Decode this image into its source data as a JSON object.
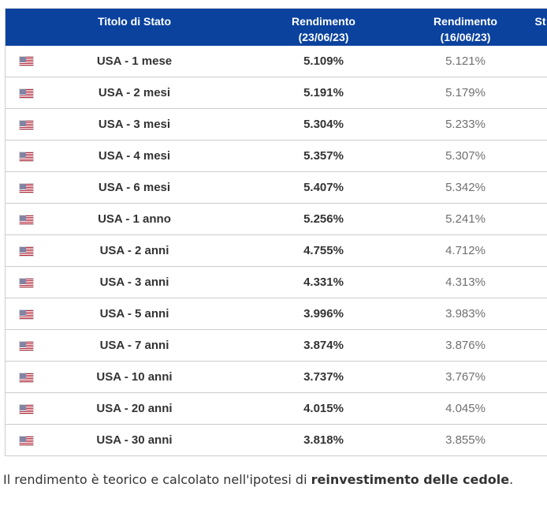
{
  "colors": {
    "header_bg": "#0a429e",
    "header_text": "#ffffff",
    "row_border": "#cccccc",
    "primary_text": "#333333",
    "secondary_text": "#707070",
    "flag_red": "#b22234",
    "flag_blue": "#3c3b6e"
  },
  "table": {
    "columns": [
      {
        "label": ""
      },
      {
        "label": "Titolo di Stato"
      },
      {
        "label": "Rendimento",
        "sublabel": "(23/06/23)"
      },
      {
        "label": "Rendimento",
        "sublabel": "(16/06/23)"
      },
      {
        "label": "St"
      }
    ],
    "flag_icon": "usa-flag-icon",
    "rows": [
      {
        "title": "USA - 1 mese",
        "yield_current": "5.109%",
        "yield_previous": "5.121%"
      },
      {
        "title": "USA - 2 mesi",
        "yield_current": "5.191%",
        "yield_previous": "5.179%"
      },
      {
        "title": "USA - 3 mesi",
        "yield_current": "5.304%",
        "yield_previous": "5.233%"
      },
      {
        "title": "USA - 4 mesi",
        "yield_current": "5.357%",
        "yield_previous": "5.307%"
      },
      {
        "title": "USA - 6 mesi",
        "yield_current": "5.407%",
        "yield_previous": "5.342%"
      },
      {
        "title": "USA - 1 anno",
        "yield_current": "5.256%",
        "yield_previous": "5.241%"
      },
      {
        "title": "USA - 2 anni",
        "yield_current": "4.755%",
        "yield_previous": "4.712%"
      },
      {
        "title": "USA - 3 anni",
        "yield_current": "4.331%",
        "yield_previous": "4.313%"
      },
      {
        "title": "USA - 5 anni",
        "yield_current": "3.996%",
        "yield_previous": "3.983%"
      },
      {
        "title": "USA - 7 anni",
        "yield_current": "3.874%",
        "yield_previous": "3.876%"
      },
      {
        "title": "USA - 10 anni",
        "yield_current": "3.737%",
        "yield_previous": "3.767%"
      },
      {
        "title": "USA - 20 anni",
        "yield_current": "4.015%",
        "yield_previous": "4.045%"
      },
      {
        "title": "USA - 30 anni",
        "yield_current": "3.818%",
        "yield_previous": "3.855%"
      }
    ]
  },
  "footer": {
    "text_regular": "Il rendimento è teorico e calcolato nell'ipotesi di ",
    "text_bold": "reinvestimento delle cedole",
    "text_end": "."
  }
}
